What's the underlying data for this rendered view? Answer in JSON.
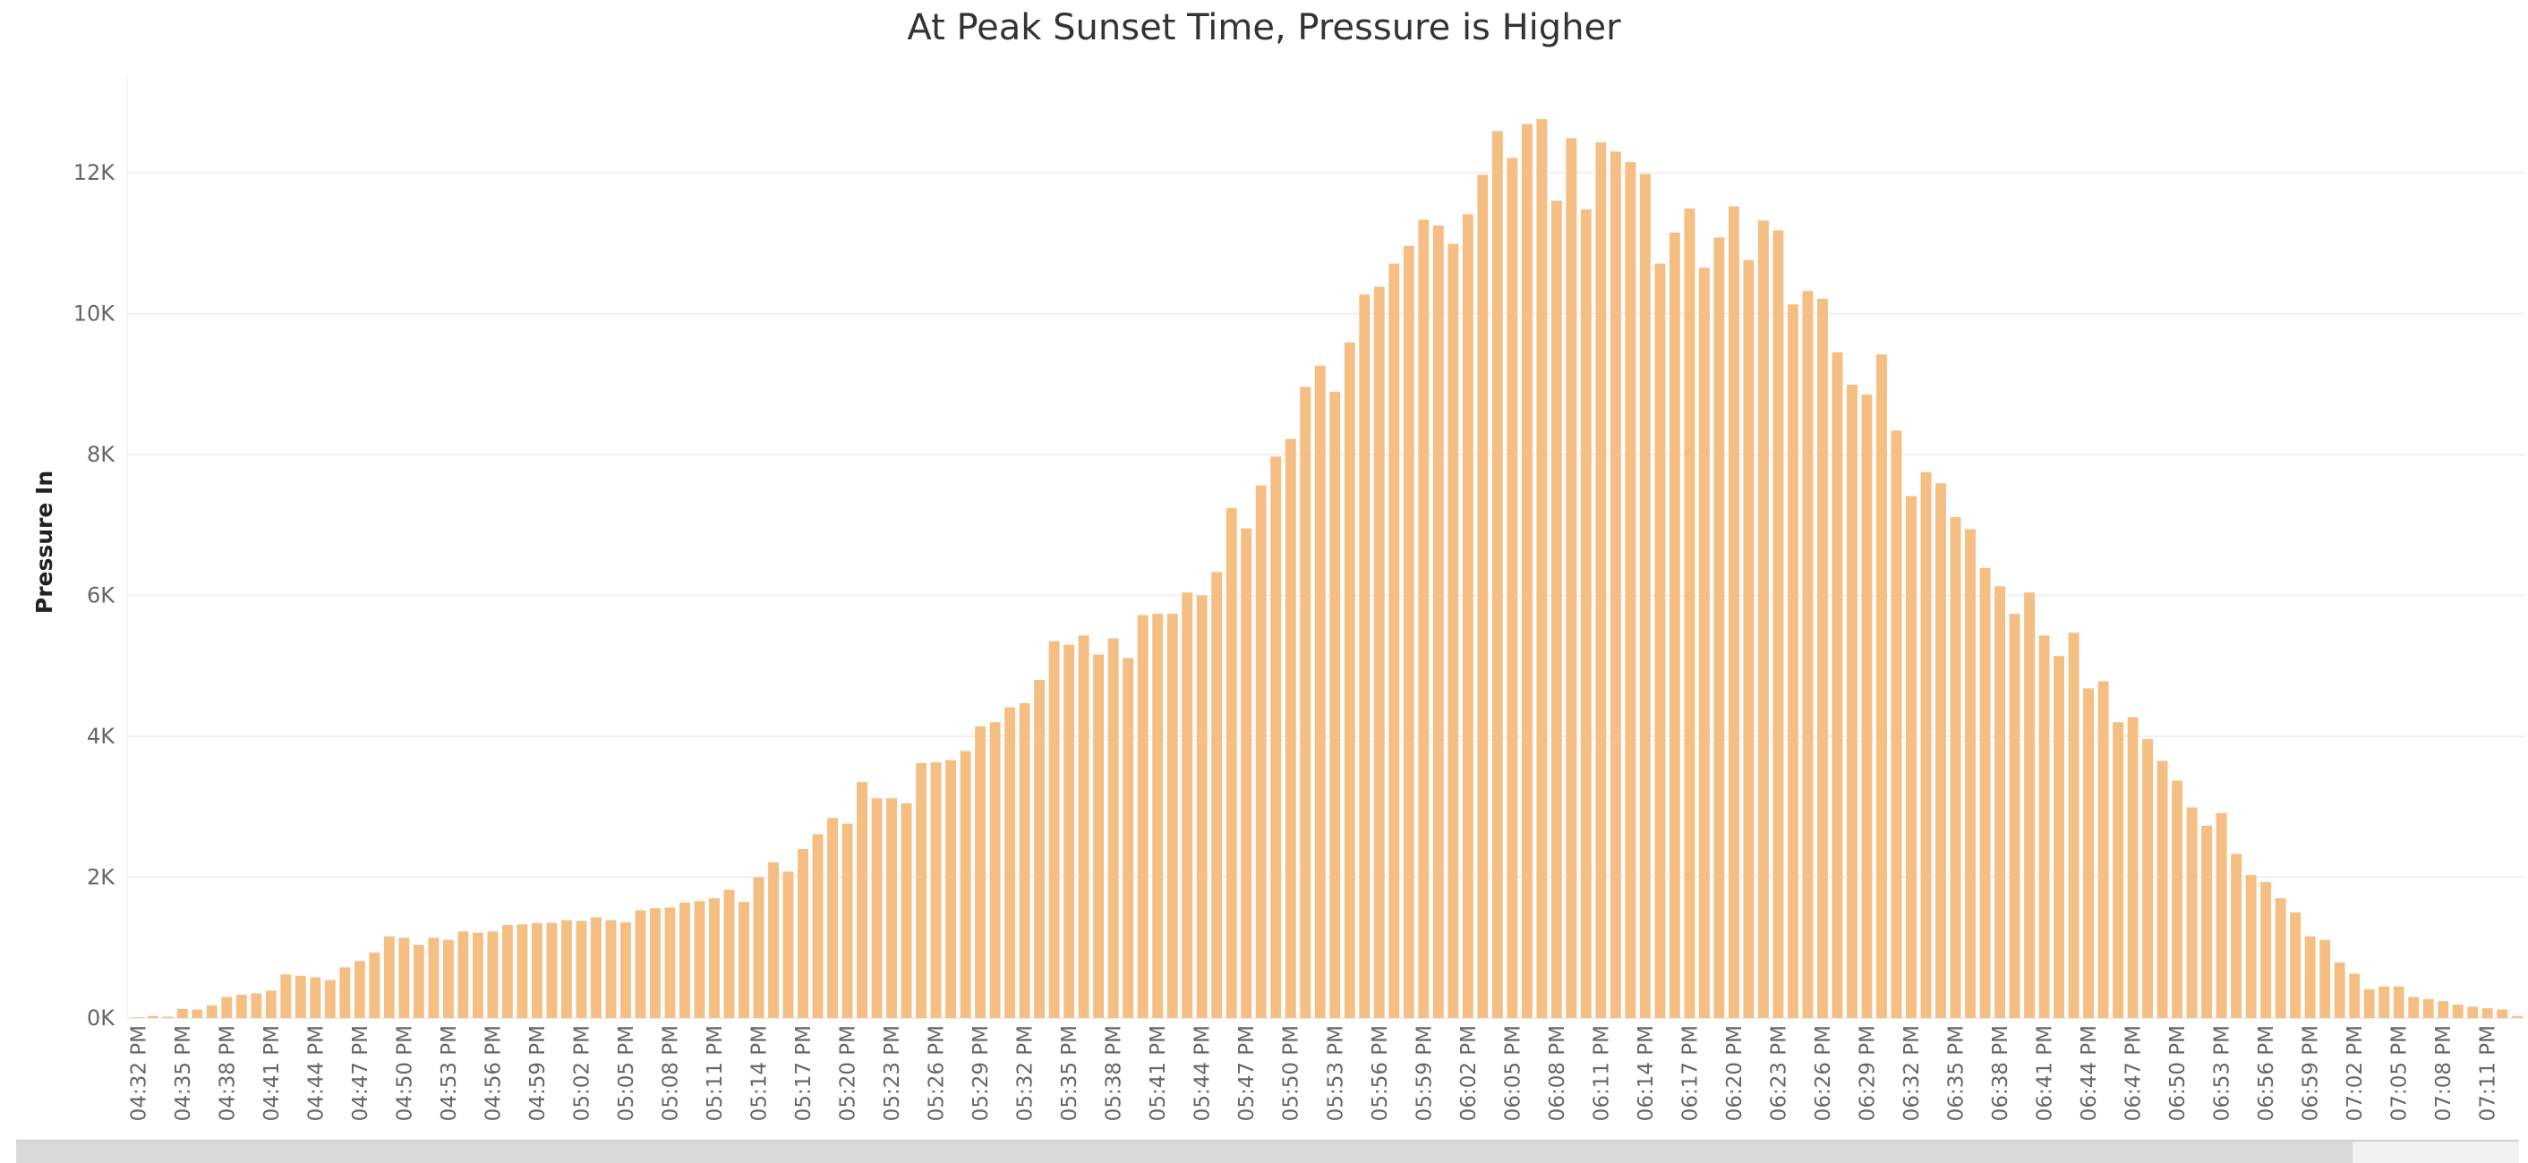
{
  "chart_data": {
    "type": "bar",
    "title": "At Peak Sunset Time, Pressure is Higher",
    "ylabel": "Pressure In",
    "xlabel": "",
    "ylim": [
      -300,
      13300
    ],
    "yticks": [
      {
        "value": 0,
        "label": "0K"
      },
      {
        "value": 2000,
        "label": "2K"
      },
      {
        "value": 4000,
        "label": "4K"
      },
      {
        "value": 6000,
        "label": "6K"
      },
      {
        "value": 8000,
        "label": "8K"
      },
      {
        "value": 10000,
        "label": "10K"
      },
      {
        "value": 12000,
        "label": "12K"
      }
    ],
    "grid": true,
    "bar_color": "#F5BE82",
    "categories": [
      "04:32 PM",
      "04:33 PM",
      "04:34 PM",
      "04:35 PM",
      "04:36 PM",
      "04:37 PM",
      "04:38 PM",
      "04:39 PM",
      "04:40 PM",
      "04:41 PM",
      "04:42 PM",
      "04:43 PM",
      "04:44 PM",
      "04:45 PM",
      "04:46 PM",
      "04:47 PM",
      "04:48 PM",
      "04:49 PM",
      "04:50 PM",
      "04:51 PM",
      "04:52 PM",
      "04:53 PM",
      "04:54 PM",
      "04:55 PM",
      "04:56 PM",
      "04:57 PM",
      "04:58 PM",
      "04:59 PM",
      "05:00 PM",
      "05:01 PM",
      "05:02 PM",
      "05:03 PM",
      "05:04 PM",
      "05:05 PM",
      "05:06 PM",
      "05:07 PM",
      "05:08 PM",
      "05:09 PM",
      "05:10 PM",
      "05:11 PM",
      "05:12 PM",
      "05:13 PM",
      "05:14 PM",
      "05:15 PM",
      "05:16 PM",
      "05:17 PM",
      "05:18 PM",
      "05:19 PM",
      "05:20 PM",
      "05:21 PM",
      "05:22 PM",
      "05:23 PM",
      "05:24 PM",
      "05:25 PM",
      "05:26 PM",
      "05:27 PM",
      "05:28 PM",
      "05:29 PM",
      "05:30 PM",
      "05:31 PM",
      "05:32 PM",
      "05:33 PM",
      "05:34 PM",
      "05:35 PM",
      "05:36 PM",
      "05:37 PM",
      "05:38 PM",
      "05:39 PM",
      "05:40 PM",
      "05:41 PM",
      "05:42 PM",
      "05:43 PM",
      "05:44 PM",
      "05:45 PM",
      "05:46 PM",
      "05:47 PM",
      "05:48 PM",
      "05:49 PM",
      "05:50 PM",
      "05:51 PM",
      "05:52 PM",
      "05:53 PM",
      "05:54 PM",
      "05:55 PM",
      "05:56 PM",
      "05:57 PM",
      "05:58 PM",
      "05:59 PM",
      "06:00 PM",
      "06:01 PM",
      "06:02 PM",
      "06:03 PM",
      "06:04 PM",
      "06:05 PM",
      "06:06 PM",
      "06:07 PM",
      "06:08 PM",
      "06:09 PM",
      "06:10 PM",
      "06:11 PM",
      "06:12 PM",
      "06:13 PM",
      "06:14 PM",
      "06:15 PM",
      "06:16 PM",
      "06:17 PM",
      "06:18 PM",
      "06:19 PM",
      "06:20 PM",
      "06:21 PM",
      "06:22 PM",
      "06:23 PM",
      "06:24 PM",
      "06:25 PM",
      "06:26 PM",
      "06:27 PM",
      "06:28 PM",
      "06:29 PM",
      "06:30 PM",
      "06:31 PM",
      "06:32 PM",
      "06:33 PM",
      "06:34 PM",
      "06:35 PM",
      "06:36 PM",
      "06:37 PM",
      "06:38 PM",
      "06:39 PM",
      "06:40 PM",
      "06:41 PM",
      "06:42 PM",
      "06:43 PM",
      "06:44 PM",
      "06:45 PM",
      "06:46 PM",
      "06:47 PM",
      "06:48 PM",
      "06:49 PM",
      "06:50 PM",
      "06:51 PM",
      "06:52 PM",
      "06:53 PM",
      "06:54 PM",
      "06:55 PM",
      "06:56 PM",
      "06:57 PM",
      "06:58 PM",
      "06:59 PM",
      "07:00 PM",
      "07:01 PM",
      "07:02 PM",
      "07:03 PM",
      "07:04 PM",
      "07:05 PM",
      "07:06 PM",
      "07:07 PM",
      "07:08 PM",
      "07:09 PM",
      "07:10 PM",
      "07:11 PM",
      "07:12 PM",
      "07:13 PM"
    ],
    "values": [
      10,
      30,
      20,
      130,
      120,
      180,
      300,
      330,
      350,
      390,
      620,
      600,
      580,
      540,
      720,
      810,
      930,
      1160,
      1140,
      1040,
      1140,
      1110,
      1230,
      1210,
      1230,
      1320,
      1330,
      1350,
      1350,
      1390,
      1380,
      1430,
      1390,
      1360,
      1530,
      1560,
      1570,
      1640,
      1660,
      1700,
      1820,
      1650,
      2000,
      2210,
      2080,
      2400,
      2610,
      2840,
      2760,
      3350,
      3120,
      3120,
      3050,
      3620,
      3630,
      3660,
      3790,
      4140,
      4200,
      4410,
      4470,
      4800,
      5350,
      5300,
      5430,
      5160,
      5390,
      5110,
      5720,
      5740,
      5740,
      6040,
      6000,
      6330,
      7240,
      6950,
      7560,
      7970,
      8220,
      8960,
      9260,
      8890,
      9590,
      10270,
      10380,
      10710,
      10960,
      11330,
      11250,
      10990,
      11410,
      11970,
      12590,
      12210,
      12690,
      12760,
      11600,
      12490,
      11480,
      12430,
      12300,
      12150,
      11980,
      10710,
      11150,
      11490,
      10650,
      11080,
      11520,
      10760,
      11320,
      11180,
      10130,
      10320,
      10210,
      9450,
      8990,
      8850,
      9420,
      8340,
      7410,
      7750,
      7590,
      7110,
      6940,
      6390,
      6130,
      5740,
      6040,
      5430,
      5140,
      5470,
      4680,
      4780,
      4200,
      4270,
      3960,
      3650,
      3370,
      2990,
      2730,
      2910,
      2330,
      2030,
      1930,
      1700,
      1500,
      1160,
      1110,
      790,
      630,
      410,
      450,
      450,
      300,
      270,
      240,
      190,
      160,
      140,
      120,
      30
    ]
  }
}
